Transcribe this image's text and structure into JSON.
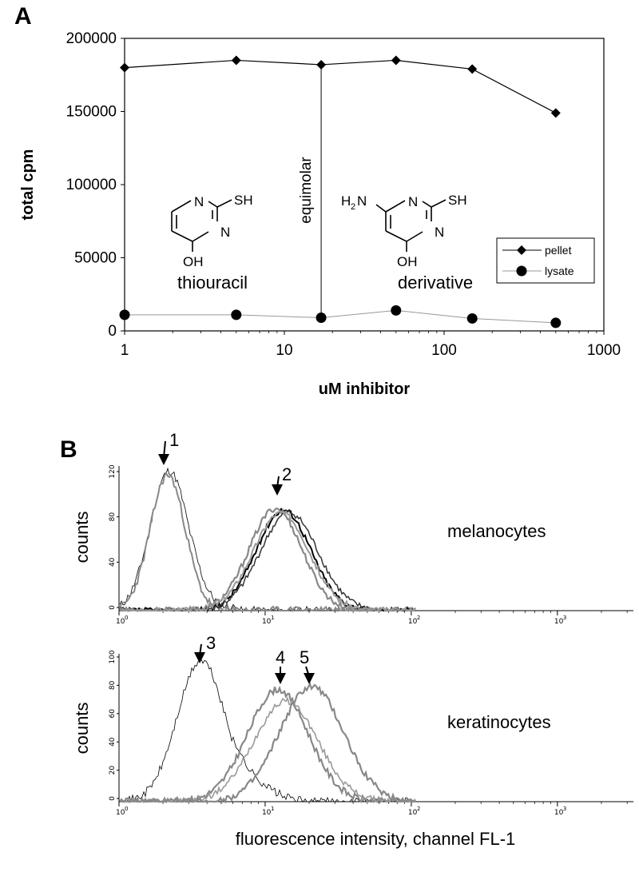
{
  "panels": {
    "a": {
      "letter": "A"
    },
    "b": {
      "letter": "B"
    }
  },
  "chart_data": [
    {
      "type": "line",
      "xlabel": "uM inhibitor",
      "ylabel": "total cpm",
      "x_scale": "log",
      "xlim": [
        1,
        1000
      ],
      "ylim": [
        0,
        200000
      ],
      "x_ticks": [
        "1",
        "10",
        "100",
        "1000"
      ],
      "y_ticks": [
        "0",
        "50000",
        "100000",
        "150000",
        "200000"
      ],
      "x": [
        1,
        5,
        17,
        50,
        150,
        500
      ],
      "series": [
        {
          "name": "pellet",
          "marker": "diamond",
          "color": "#000000",
          "values": [
            180000,
            185000,
            182000,
            185000,
            179000,
            149000
          ]
        },
        {
          "name": "lysate",
          "marker": "circle",
          "color": "#999999",
          "values": [
            11000,
            11000,
            9000,
            14000,
            8500,
            5500
          ]
        }
      ],
      "legend": "right",
      "annotations": {
        "equimolar": "equimolar",
        "thiouracil": "thiouracil",
        "derivative": "derivative",
        "atoms": {
          "N": "N",
          "SH": "SH",
          "OH": "OH",
          "H2N": "H",
          "sub2": "2",
          "N_after": "N"
        }
      }
    },
    {
      "type": "histogram",
      "row": "melanocytes",
      "label": "melanocytes",
      "ylabel": "counts",
      "x_scale": "log",
      "xlim": [
        1,
        1000
      ],
      "y_ticks": [
        "0",
        "40",
        "80",
        "120"
      ],
      "arrows": [
        "1",
        "2"
      ]
    },
    {
      "type": "histogram",
      "row": "keratinocytes",
      "label": "keratinocytes",
      "ylabel": "counts",
      "xlabel": "fluorescence intensity, channel FL-1",
      "x_scale": "log",
      "xlim": [
        1,
        1000
      ],
      "y_ticks": [
        "0",
        "20",
        "40",
        "60",
        "80",
        "100"
      ],
      "arrows": [
        "3",
        "4",
        "5"
      ]
    }
  ]
}
